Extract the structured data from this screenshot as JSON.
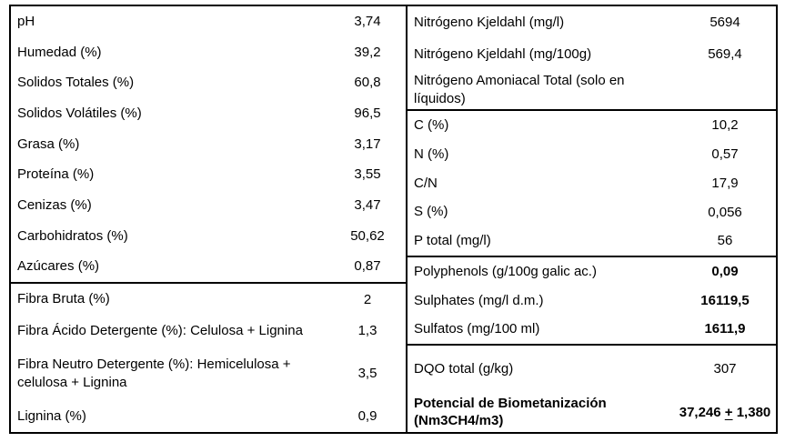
{
  "page": {
    "background_color": "#ffffff",
    "border_color": "#000000",
    "text_color": "#000000"
  },
  "tables": {
    "left": {
      "sections": [
        {
          "rows": [
            {
              "id": "ph",
              "label": "pH",
              "value": "3,74"
            },
            {
              "id": "humedad",
              "label": "Humedad (%)",
              "value": "39,2"
            },
            {
              "id": "solidos-totales",
              "label": "Solidos Totales (%)",
              "value": "60,8"
            },
            {
              "id": "solidos-volatiles",
              "label": "Solidos Volátiles (%)",
              "value": "96,5"
            },
            {
              "id": "grasa",
              "label": "Grasa (%)",
              "value": "3,17"
            },
            {
              "id": "proteina",
              "label": "Proteína (%)",
              "value": "3,55"
            },
            {
              "id": "cenizas",
              "label": "Cenizas (%)",
              "value": "3,47"
            },
            {
              "id": "carbohidratos",
              "label": "Carbohidratos (%)",
              "value": "50,62"
            },
            {
              "id": "azucares",
              "label": "Azúcares (%)",
              "value": "0,87"
            }
          ]
        },
        {
          "rows": [
            {
              "id": "fibra-bruta",
              "label": "Fibra Bruta (%)",
              "value": "2"
            },
            {
              "id": "fibra-acido",
              "label": "Fibra Ácido Detergente (%): Celulosa + Lignina",
              "value": "1,3"
            },
            {
              "id": "fibra-neutro",
              "label": "Fibra Neutro Detergente (%): Hemicelulosa + celulosa + Lignina",
              "value": "3,5"
            },
            {
              "id": "lignina",
              "label": "Lignina (%)",
              "value": "0,9"
            }
          ]
        }
      ]
    },
    "right": {
      "sections": [
        {
          "rows": [
            {
              "id": "nitrogeno-kjeldahl-mgl",
              "label": "Nitrógeno Kjeldahl (mg/l)",
              "value": "5694"
            },
            {
              "id": "nitrogeno-kjeldahl-mg100g",
              "label": "Nitrógeno Kjeldahl (mg/100g)",
              "value": "569,4"
            },
            {
              "id": "nitrogeno-amoniacal",
              "label": "Nitrógeno Amoniacal Total (solo en líquidos)",
              "value": ""
            }
          ]
        },
        {
          "rows": [
            {
              "id": "c",
              "label": "C (%)",
              "value": "10,2"
            },
            {
              "id": "n",
              "label": "N (%)",
              "value": "0,57"
            },
            {
              "id": "cn",
              "label": "C/N",
              "value": "17,9"
            },
            {
              "id": "s",
              "label": "S (%)",
              "value": "0,056"
            },
            {
              "id": "p-total",
              "label": "P total (mg/l)",
              "value": "56"
            }
          ]
        },
        {
          "rows": [
            {
              "id": "polyphenols",
              "label": "Polyphenols (g/100g galic ac.)",
              "value": "0,09",
              "bold_value": true
            },
            {
              "id": "sulphates",
              "label": "Sulphates (mg/l d.m.)",
              "value": "16119,5",
              "bold_value": true
            },
            {
              "id": "sulfatos",
              "label": "Sulfatos (mg/100 ml)",
              "value": "1611,9",
              "bold_value": true
            }
          ]
        },
        {
          "rows": [
            {
              "id": "dqo-total",
              "label": "DQO total (g/kg)",
              "value": "307"
            },
            {
              "id": "potencial-biometanizacion",
              "label": "Potencial de Biometanización (Nm3CH4/m3)",
              "bold_label": true,
              "bold_value": true,
              "value_parts": [
                {
                  "text": "37,246 "
                },
                {
                  "text": "+",
                  "underline": true
                },
                {
                  "text": " 1,380"
                }
              ]
            }
          ]
        }
      ]
    }
  }
}
